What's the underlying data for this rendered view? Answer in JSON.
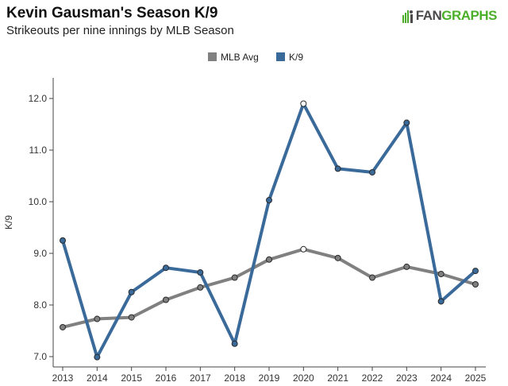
{
  "header": {
    "title": "Kevin Gausman's Season K/9",
    "subtitle": "Strikeouts per nine innings by MLB Season",
    "logo_text_1": "FAN",
    "logo_text_2": "GRAPHS"
  },
  "chart_data": {
    "type": "line",
    "x": [
      2013,
      2014,
      2015,
      2016,
      2017,
      2018,
      2019,
      2020,
      2021,
      2022,
      2023,
      2024,
      2025
    ],
    "ylabel": "K/9",
    "xlabel": "",
    "ylim": [
      6.8,
      12.4
    ],
    "yticks": [
      7.0,
      8.0,
      9.0,
      10.0,
      11.0,
      12.0
    ],
    "grid": false,
    "legend_position": "top-center",
    "series": [
      {
        "name": "MLB Avg",
        "color": "#808080",
        "values": [
          7.57,
          7.73,
          7.76,
          8.1,
          8.34,
          8.53,
          8.88,
          9.08,
          8.91,
          8.53,
          8.74,
          8.6,
          8.4
        ]
      },
      {
        "name": "K/9",
        "color": "#3a6a9a",
        "values": [
          9.25,
          6.99,
          8.25,
          8.72,
          8.63,
          7.25,
          10.03,
          11.9,
          10.64,
          10.57,
          11.53,
          8.07,
          8.66
        ]
      }
    ],
    "highlight_index": 7
  }
}
